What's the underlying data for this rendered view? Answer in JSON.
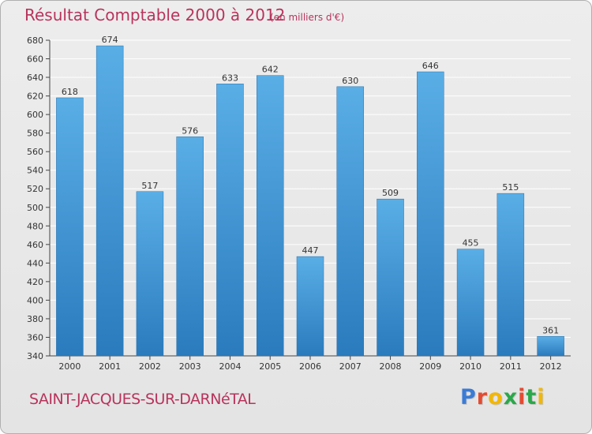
{
  "chart_data": {
    "type": "bar",
    "title": "Résultat Comptable 2000 à 2012",
    "subtitle": "(en milliers d'€)",
    "categories": [
      "2000",
      "2001",
      "2002",
      "2003",
      "2004",
      "2005",
      "2006",
      "2007",
      "2008",
      "2009",
      "2010",
      "2011",
      "2012"
    ],
    "values": [
      618,
      674,
      517,
      576,
      633,
      642,
      447,
      630,
      509,
      646,
      455,
      515,
      361
    ],
    "ylim": [
      340,
      680
    ],
    "ytick_step": 20,
    "xlabel": "",
    "ylabel": "",
    "grid": true,
    "bar_color": "#3a8fd4"
  },
  "footer": {
    "commune": "SAINT-JACQUES-SUR-DARNéTAL"
  },
  "brand": {
    "letters": [
      "P",
      "r",
      "o",
      "x",
      "i",
      "t",
      "i"
    ],
    "colors": [
      "#3a7bd5",
      "#e34b32",
      "#f2b705",
      "#2ba84a",
      "#e34b32",
      "#2ba84a",
      "#f2b705"
    ]
  }
}
